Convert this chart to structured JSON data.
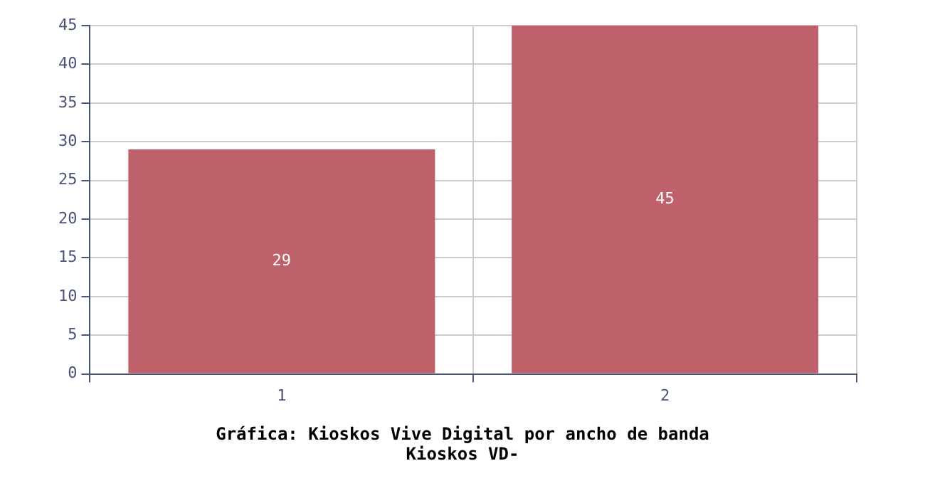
{
  "chart_data": {
    "type": "bar",
    "title": "Gráfica: Kioskos Vive Digital por ancho de banda",
    "subtitle": "Kioskos VD-",
    "categories": [
      "1",
      "2"
    ],
    "values": [
      29,
      45
    ],
    "color": "#be616a",
    "ylim": [
      0,
      45
    ],
    "yticks": [
      0,
      5,
      10,
      15,
      20,
      25,
      30,
      35,
      40,
      45
    ],
    "grid": true,
    "data_labels": true
  }
}
